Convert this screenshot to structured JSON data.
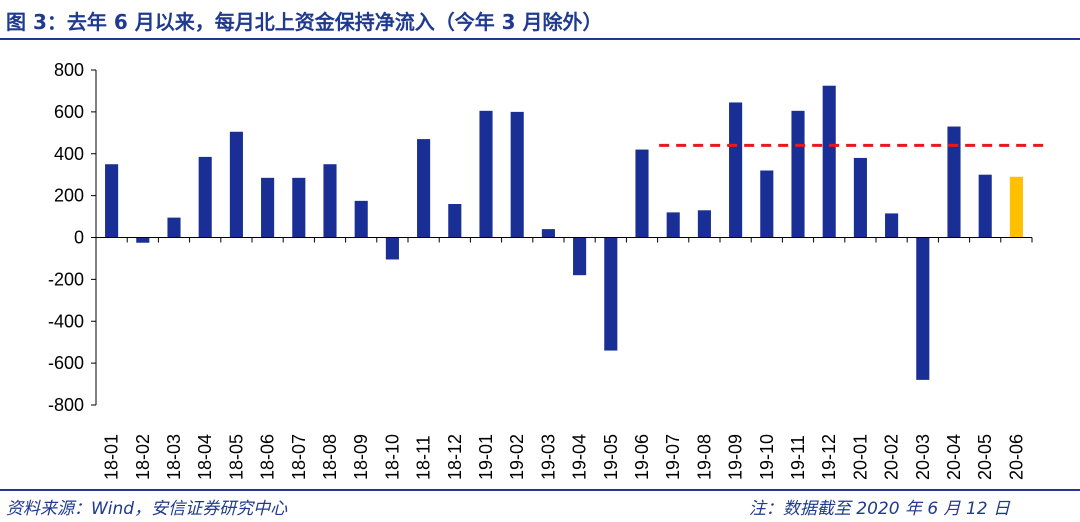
{
  "title": "图 3：去年 6 月以来，每月北上资金保持净流入（今年 3 月除外）",
  "footer": {
    "source": "资料来源：Wind，安信证券研究中心",
    "note": "注：数据截至 2020 年 6 月 12 日"
  },
  "colors": {
    "bar": "#1a2f96",
    "highlight_bar": "#ffc000",
    "reference_line": "#e8191d",
    "axis": "#000000",
    "title": "#1f3a8f"
  },
  "chart_data": {
    "type": "bar",
    "categories": [
      "18-01",
      "18-02",
      "18-03",
      "18-04",
      "18-05",
      "18-06",
      "18-07",
      "18-08",
      "18-09",
      "18-10",
      "18-11",
      "18-12",
      "19-01",
      "19-02",
      "19-03",
      "19-04",
      "19-05",
      "19-06",
      "19-07",
      "19-08",
      "19-09",
      "19-10",
      "19-11",
      "19-12",
      "20-01",
      "20-02",
      "20-03",
      "20-04",
      "20-05",
      "20-06"
    ],
    "values": [
      350,
      -25,
      95,
      385,
      505,
      285,
      285,
      350,
      175,
      -105,
      470,
      160,
      605,
      600,
      40,
      -180,
      -540,
      420,
      120,
      130,
      645,
      320,
      605,
      725,
      380,
      115,
      -680,
      530,
      300,
      290
    ],
    "highlight_index": 29,
    "ylim": [
      -800,
      800
    ],
    "yticks": [
      -800,
      -600,
      -400,
      -200,
      0,
      200,
      400,
      600,
      800
    ],
    "reference_line": {
      "value": 440,
      "from": "19-07",
      "to": "20-06",
      "style": "dashed"
    },
    "grid": false,
    "legend": "none"
  }
}
